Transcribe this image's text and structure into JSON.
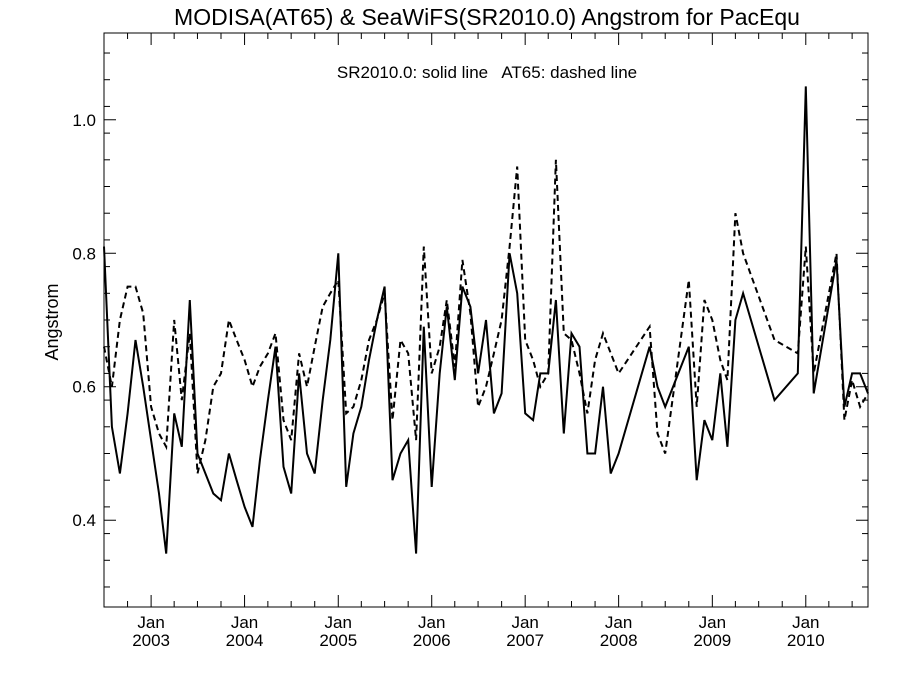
{
  "chart_data": {
    "type": "line",
    "title": "MODISA(AT65) & SeaWiFS(SR2010.0)  Angstrom for PacEqu",
    "annotation": "SR2010.0: solid line   AT65: dashed line",
    "xlabel": "",
    "ylabel": "Angstrom",
    "ylim": [
      0.27,
      1.13
    ],
    "xlim": [
      "2002-07-01",
      "2010-09-01"
    ],
    "x_ticks": [
      {
        "top": "Jan",
        "bottom": "2003",
        "x": "2003-01-01"
      },
      {
        "top": "Jan",
        "bottom": "2004",
        "x": "2004-01-01"
      },
      {
        "top": "Jan",
        "bottom": "2005",
        "x": "2005-01-01"
      },
      {
        "top": "Jan",
        "bottom": "2006",
        "x": "2006-01-01"
      },
      {
        "top": "Jan",
        "bottom": "2007",
        "x": "2007-01-01"
      },
      {
        "top": "Jan",
        "bottom": "2008",
        "x": "2008-01-01"
      },
      {
        "top": "Jan",
        "bottom": "2009",
        "x": "2009-01-01"
      },
      {
        "top": "Jan",
        "bottom": "2010",
        "x": "2010-01-01"
      }
    ],
    "y_ticks": [
      "0.4",
      "0.6",
      "0.8",
      "1.0"
    ],
    "y_tick_values": [
      0.4,
      0.6,
      0.8,
      1.0
    ],
    "grid": false,
    "series": [
      {
        "name": "SR2010.0",
        "style": "solid",
        "color": "#000000",
        "points": [
          [
            "2002-07-01",
            0.81
          ],
          [
            "2002-08-01",
            0.54
          ],
          [
            "2002-09-01",
            0.47
          ],
          [
            "2002-10-01",
            0.56
          ],
          [
            "2002-11-01",
            0.67
          ],
          [
            "2002-12-01",
            0.6
          ],
          [
            "2003-01-01",
            0.52
          ],
          [
            "2003-02-01",
            0.44
          ],
          [
            "2003-03-01",
            0.35
          ],
          [
            "2003-04-01",
            0.56
          ],
          [
            "2003-05-01",
            0.51
          ],
          [
            "2003-06-01",
            0.73
          ],
          [
            "2003-07-01",
            0.5
          ],
          [
            "2003-08-01",
            0.47
          ],
          [
            "2003-09-01",
            0.44
          ],
          [
            "2003-10-01",
            0.43
          ],
          [
            "2003-11-01",
            0.5
          ],
          [
            "2003-12-01",
            0.46
          ],
          [
            "2004-01-01",
            0.42
          ],
          [
            "2004-02-01",
            0.39
          ],
          [
            "2004-03-01",
            0.49
          ],
          [
            "2004-04-01",
            0.58
          ],
          [
            "2004-05-01",
            0.66
          ],
          [
            "2004-06-01",
            0.48
          ],
          [
            "2004-07-01",
            0.44
          ],
          [
            "2004-08-01",
            0.62
          ],
          [
            "2004-09-01",
            0.5
          ],
          [
            "2004-10-01",
            0.47
          ],
          [
            "2004-11-01",
            0.58
          ],
          [
            "2004-12-01",
            0.67
          ],
          [
            "2005-01-01",
            0.8
          ],
          [
            "2005-02-01",
            0.45
          ],
          [
            "2005-03-01",
            0.53
          ],
          [
            "2005-04-01",
            0.57
          ],
          [
            "2005-05-01",
            0.64
          ],
          [
            "2005-06-01",
            0.7
          ],
          [
            "2005-07-01",
            0.75
          ],
          [
            "2005-08-01",
            0.46
          ],
          [
            "2005-09-01",
            0.5
          ],
          [
            "2005-10-01",
            0.52
          ],
          [
            "2005-11-01",
            0.35
          ],
          [
            "2005-12-01",
            0.69
          ],
          [
            "2006-01-01",
            0.45
          ],
          [
            "2006-02-01",
            0.62
          ],
          [
            "2006-03-01",
            0.72
          ],
          [
            "2006-04-01",
            0.61
          ],
          [
            "2006-05-01",
            0.75
          ],
          [
            "2006-06-01",
            0.72
          ],
          [
            "2006-07-01",
            0.62
          ],
          [
            "2006-08-01",
            0.7
          ],
          [
            "2006-09-01",
            0.56
          ],
          [
            "2006-10-01",
            0.59
          ],
          [
            "2006-11-01",
            0.8
          ],
          [
            "2006-12-01",
            0.74
          ],
          [
            "2007-01-01",
            0.56
          ],
          [
            "2007-02-01",
            0.55
          ],
          [
            "2007-03-01",
            0.62
          ],
          [
            "2007-04-01",
            0.62
          ],
          [
            "2007-05-01",
            0.73
          ],
          [
            "2007-06-01",
            0.53
          ],
          [
            "2007-07-01",
            0.68
          ],
          [
            "2007-08-01",
            0.66
          ],
          [
            "2007-09-01",
            0.5
          ],
          [
            "2007-10-01",
            0.5
          ],
          [
            "2007-11-01",
            0.6
          ],
          [
            "2007-12-01",
            0.47
          ],
          [
            "2008-01-01",
            0.5
          ],
          [
            "2008-05-01",
            0.66
          ],
          [
            "2008-06-01",
            0.6
          ],
          [
            "2008-07-01",
            0.57
          ],
          [
            "2008-10-01",
            0.66
          ],
          [
            "2008-11-01",
            0.46
          ],
          [
            "2008-12-01",
            0.55
          ],
          [
            "2009-01-01",
            0.52
          ],
          [
            "2009-02-01",
            0.62
          ],
          [
            "2009-03-01",
            0.51
          ],
          [
            "2009-04-01",
            0.7
          ],
          [
            "2009-05-01",
            0.74
          ],
          [
            "2009-09-01",
            0.58
          ],
          [
            "2009-12-01",
            0.62
          ],
          [
            "2010-01-01",
            1.05
          ],
          [
            "2010-02-01",
            0.59
          ],
          [
            "2010-05-01",
            0.79
          ],
          [
            "2010-06-01",
            0.57
          ],
          [
            "2010-07-01",
            0.62
          ],
          [
            "2010-08-01",
            0.62
          ],
          [
            "2010-09-01",
            0.59
          ]
        ]
      },
      {
        "name": "AT65",
        "style": "dashed",
        "color": "#000000",
        "points": [
          [
            "2002-07-01",
            0.66
          ],
          [
            "2002-08-01",
            0.6
          ],
          [
            "2002-09-01",
            0.7
          ],
          [
            "2002-10-01",
            0.75
          ],
          [
            "2002-11-01",
            0.75
          ],
          [
            "2002-12-01",
            0.71
          ],
          [
            "2003-01-01",
            0.57
          ],
          [
            "2003-02-01",
            0.53
          ],
          [
            "2003-03-01",
            0.51
          ],
          [
            "2003-04-01",
            0.7
          ],
          [
            "2003-05-01",
            0.58
          ],
          [
            "2003-06-01",
            0.68
          ],
          [
            "2003-07-01",
            0.47
          ],
          [
            "2003-08-01",
            0.52
          ],
          [
            "2003-09-01",
            0.6
          ],
          [
            "2003-10-01",
            0.62
          ],
          [
            "2003-11-01",
            0.7
          ],
          [
            "2003-12-01",
            0.67
          ],
          [
            "2004-01-01",
            0.64
          ],
          [
            "2004-02-01",
            0.6
          ],
          [
            "2004-03-01",
            0.63
          ],
          [
            "2004-04-01",
            0.65
          ],
          [
            "2004-05-01",
            0.68
          ],
          [
            "2004-06-01",
            0.55
          ],
          [
            "2004-07-01",
            0.52
          ],
          [
            "2004-08-01",
            0.65
          ],
          [
            "2004-09-01",
            0.6
          ],
          [
            "2004-10-01",
            0.66
          ],
          [
            "2004-11-01",
            0.72
          ],
          [
            "2004-12-01",
            0.74
          ],
          [
            "2005-01-01",
            0.76
          ],
          [
            "2005-02-01",
            0.56
          ],
          [
            "2005-03-01",
            0.57
          ],
          [
            "2005-04-01",
            0.61
          ],
          [
            "2005-05-01",
            0.67
          ],
          [
            "2005-06-01",
            0.7
          ],
          [
            "2005-07-01",
            0.74
          ],
          [
            "2005-08-01",
            0.55
          ],
          [
            "2005-09-01",
            0.67
          ],
          [
            "2005-10-01",
            0.65
          ],
          [
            "2005-11-01",
            0.52
          ],
          [
            "2005-12-01",
            0.81
          ],
          [
            "2006-01-01",
            0.62
          ],
          [
            "2006-02-01",
            0.66
          ],
          [
            "2006-03-01",
            0.73
          ],
          [
            "2006-04-01",
            0.63
          ],
          [
            "2006-05-01",
            0.79
          ],
          [
            "2006-06-01",
            0.71
          ],
          [
            "2006-07-01",
            0.57
          ],
          [
            "2006-08-01",
            0.6
          ],
          [
            "2006-09-01",
            0.65
          ],
          [
            "2006-10-01",
            0.7
          ],
          [
            "2006-11-01",
            0.81
          ],
          [
            "2006-12-01",
            0.93
          ],
          [
            "2007-01-01",
            0.67
          ],
          [
            "2007-02-01",
            0.64
          ],
          [
            "2007-03-01",
            0.6
          ],
          [
            "2007-04-01",
            0.62
          ],
          [
            "2007-05-01",
            0.94
          ],
          [
            "2007-06-01",
            0.68
          ],
          [
            "2007-07-01",
            0.67
          ],
          [
            "2007-08-01",
            0.62
          ],
          [
            "2007-09-01",
            0.56
          ],
          [
            "2007-10-01",
            0.64
          ],
          [
            "2007-11-01",
            0.68
          ],
          [
            "2008-01-01",
            0.62
          ],
          [
            "2008-05-01",
            0.69
          ],
          [
            "2008-06-01",
            0.53
          ],
          [
            "2008-07-01",
            0.5
          ],
          [
            "2008-10-01",
            0.76
          ],
          [
            "2008-11-01",
            0.57
          ],
          [
            "2008-12-01",
            0.73
          ],
          [
            "2009-01-01",
            0.7
          ],
          [
            "2009-02-01",
            0.64
          ],
          [
            "2009-03-01",
            0.61
          ],
          [
            "2009-04-01",
            0.86
          ],
          [
            "2009-05-01",
            0.8
          ],
          [
            "2009-09-01",
            0.67
          ],
          [
            "2009-12-01",
            0.65
          ],
          [
            "2010-01-01",
            0.81
          ],
          [
            "2010-02-01",
            0.62
          ],
          [
            "2010-05-01",
            0.8
          ],
          [
            "2010-06-01",
            0.55
          ],
          [
            "2010-07-01",
            0.61
          ],
          [
            "2010-08-01",
            0.57
          ],
          [
            "2010-09-01",
            0.59
          ]
        ]
      }
    ]
  }
}
